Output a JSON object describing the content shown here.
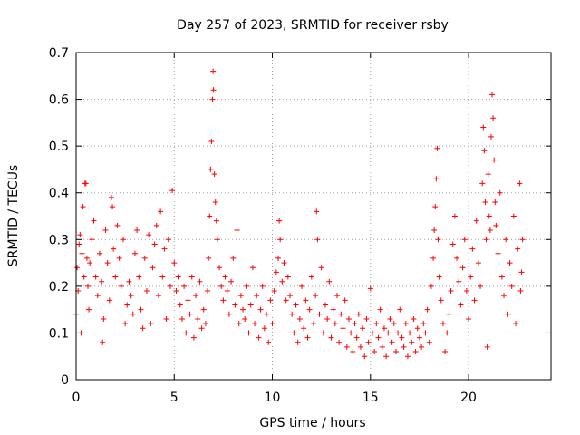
{
  "chart_data": {
    "type": "scatter",
    "title": "Day 257 of 2023, SRMTID for receiver rsby",
    "xlabel": "GPS time / hours",
    "ylabel": "SRMTID / TECUs",
    "xlim": [
      0,
      24.2
    ],
    "ylim": [
      0,
      0.7
    ],
    "x_ticks": [
      0,
      5,
      10,
      15,
      20
    ],
    "y_ticks": [
      0,
      0.1,
      0.2,
      0.3,
      0.4,
      0.5,
      0.6,
      0.7
    ],
    "x_tick_labels": [
      "0",
      "5",
      "10",
      "15",
      "20"
    ],
    "y_tick_labels": [
      "0",
      "0.1",
      "0.2",
      "0.3",
      "0.4",
      "0.5",
      "0.6",
      "0.7"
    ],
    "grid": true,
    "marker": "+",
    "color": "#ff0000",
    "series": [
      {
        "name": "SRMTID",
        "points": [
          [
            0.0,
            0.14
          ],
          [
            0.05,
            0.24
          ],
          [
            0.1,
            0.19
          ],
          [
            0.15,
            0.29
          ],
          [
            0.2,
            0.31
          ],
          [
            0.25,
            0.1
          ],
          [
            0.3,
            0.27
          ],
          [
            0.35,
            0.37
          ],
          [
            0.4,
            0.22
          ],
          [
            0.45,
            0.42
          ],
          [
            0.5,
            0.42
          ],
          [
            0.55,
            0.26
          ],
          [
            0.6,
            0.2
          ],
          [
            0.65,
            0.15
          ],
          [
            0.7,
            0.25
          ],
          [
            0.8,
            0.3
          ],
          [
            0.9,
            0.34
          ],
          [
            1.0,
            0.22
          ],
          [
            1.1,
            0.18
          ],
          [
            1.2,
            0.27
          ],
          [
            1.3,
            0.21
          ],
          [
            1.35,
            0.08
          ],
          [
            1.4,
            0.13
          ],
          [
            1.5,
            0.32
          ],
          [
            1.6,
            0.25
          ],
          [
            1.7,
            0.17
          ],
          [
            1.8,
            0.39
          ],
          [
            1.85,
            0.37
          ],
          [
            1.9,
            0.28
          ],
          [
            2.0,
            0.22
          ],
          [
            2.1,
            0.33
          ],
          [
            2.2,
            0.26
          ],
          [
            2.3,
            0.2
          ],
          [
            2.4,
            0.3
          ],
          [
            2.5,
            0.12
          ],
          [
            2.6,
            0.16
          ],
          [
            2.7,
            0.21
          ],
          [
            2.8,
            0.18
          ],
          [
            2.9,
            0.14
          ],
          [
            3.0,
            0.27
          ],
          [
            3.1,
            0.32
          ],
          [
            3.2,
            0.22
          ],
          [
            3.3,
            0.15
          ],
          [
            3.4,
            0.11
          ],
          [
            3.5,
            0.26
          ],
          [
            3.6,
            0.19
          ],
          [
            3.7,
            0.31
          ],
          [
            3.8,
            0.12
          ],
          [
            3.9,
            0.24
          ],
          [
            4.0,
            0.29
          ],
          [
            4.1,
            0.33
          ],
          [
            4.2,
            0.18
          ],
          [
            4.3,
            0.36
          ],
          [
            4.4,
            0.22
          ],
          [
            4.5,
            0.28
          ],
          [
            4.6,
            0.13
          ],
          [
            4.7,
            0.3
          ],
          [
            4.8,
            0.2
          ],
          [
            4.9,
            0.405
          ],
          [
            5.0,
            0.25
          ],
          [
            5.1,
            0.19
          ],
          [
            5.2,
            0.22
          ],
          [
            5.3,
            0.16
          ],
          [
            5.4,
            0.13
          ],
          [
            5.5,
            0.2
          ],
          [
            5.6,
            0.1
          ],
          [
            5.7,
            0.17
          ],
          [
            5.8,
            0.14
          ],
          [
            5.9,
            0.22
          ],
          [
            6.0,
            0.09
          ],
          [
            6.1,
            0.18
          ],
          [
            6.2,
            0.13
          ],
          [
            6.3,
            0.21
          ],
          [
            6.4,
            0.11
          ],
          [
            6.5,
            0.15
          ],
          [
            6.6,
            0.12
          ],
          [
            6.7,
            0.19
          ],
          [
            6.75,
            0.26
          ],
          [
            6.8,
            0.35
          ],
          [
            6.85,
            0.45
          ],
          [
            6.9,
            0.51
          ],
          [
            6.95,
            0.6
          ],
          [
            7.0,
            0.62
          ],
          [
            6.98,
            0.66
          ],
          [
            7.05,
            0.44
          ],
          [
            7.1,
            0.38
          ],
          [
            7.15,
            0.34
          ],
          [
            7.2,
            0.3
          ],
          [
            7.3,
            0.24
          ],
          [
            7.4,
            0.2
          ],
          [
            7.5,
            0.17
          ],
          [
            7.6,
            0.22
          ],
          [
            7.7,
            0.19
          ],
          [
            7.8,
            0.14
          ],
          [
            7.9,
            0.21
          ],
          [
            8.0,
            0.26
          ],
          [
            8.1,
            0.16
          ],
          [
            8.2,
            0.32
          ],
          [
            8.3,
            0.12
          ],
          [
            8.4,
            0.18
          ],
          [
            8.5,
            0.15
          ],
          [
            8.6,
            0.13
          ],
          [
            8.7,
            0.2
          ],
          [
            8.8,
            0.1
          ],
          [
            8.9,
            0.16
          ],
          [
            9.0,
            0.24
          ],
          [
            9.1,
            0.12
          ],
          [
            9.2,
            0.18
          ],
          [
            9.3,
            0.09
          ],
          [
            9.4,
            0.15
          ],
          [
            9.5,
            0.2
          ],
          [
            9.6,
            0.11
          ],
          [
            9.7,
            0.14
          ],
          [
            9.8,
            0.08
          ],
          [
            9.9,
            0.17
          ],
          [
            10.0,
            0.12
          ],
          [
            10.1,
            0.19
          ],
          [
            10.2,
            0.23
          ],
          [
            10.3,
            0.26
          ],
          [
            10.35,
            0.34
          ],
          [
            10.4,
            0.3
          ],
          [
            10.5,
            0.21
          ],
          [
            10.6,
            0.25
          ],
          [
            10.7,
            0.17
          ],
          [
            10.8,
            0.22
          ],
          [
            10.9,
            0.18
          ],
          [
            11.0,
            0.14
          ],
          [
            11.1,
            0.1
          ],
          [
            11.2,
            0.16
          ],
          [
            11.3,
            0.08
          ],
          [
            11.4,
            0.13
          ],
          [
            11.5,
            0.2
          ],
          [
            11.6,
            0.11
          ],
          [
            11.7,
            0.17
          ],
          [
            11.8,
            0.09
          ],
          [
            11.9,
            0.15
          ],
          [
            12.0,
            0.22
          ],
          [
            12.1,
            0.12
          ],
          [
            12.2,
            0.18
          ],
          [
            12.25,
            0.36
          ],
          [
            12.3,
            0.3
          ],
          [
            12.4,
            0.14
          ],
          [
            12.5,
            0.24
          ],
          [
            12.6,
            0.1
          ],
          [
            12.7,
            0.16
          ],
          [
            12.8,
            0.13
          ],
          [
            12.9,
            0.21
          ],
          [
            13.0,
            0.09
          ],
          [
            13.1,
            0.15
          ],
          [
            13.2,
            0.12
          ],
          [
            13.3,
            0.18
          ],
          [
            13.4,
            0.08
          ],
          [
            13.5,
            0.14
          ],
          [
            13.6,
            0.11
          ],
          [
            13.7,
            0.17
          ],
          [
            13.8,
            0.07
          ],
          [
            13.9,
            0.13
          ],
          [
            14.0,
            0.1
          ],
          [
            14.1,
            0.06
          ],
          [
            14.2,
            0.12
          ],
          [
            14.3,
            0.09
          ],
          [
            14.4,
            0.14
          ],
          [
            14.5,
            0.07
          ],
          [
            14.6,
            0.11
          ],
          [
            14.7,
            0.05
          ],
          [
            14.8,
            0.13
          ],
          [
            14.9,
            0.08
          ],
          [
            15.0,
            0.195
          ],
          [
            15.1,
            0.1
          ],
          [
            15.2,
            0.06
          ],
          [
            15.3,
            0.12
          ],
          [
            15.4,
            0.09
          ],
          [
            15.5,
            0.15
          ],
          [
            15.6,
            0.07
          ],
          [
            15.7,
            0.11
          ],
          [
            15.8,
            0.05
          ],
          [
            15.9,
            0.1
          ],
          [
            16.0,
            0.13
          ],
          [
            16.1,
            0.08
          ],
          [
            16.2,
            0.12
          ],
          [
            16.3,
            0.06
          ],
          [
            16.4,
            0.1
          ],
          [
            16.5,
            0.15
          ],
          [
            16.6,
            0.09
          ],
          [
            16.7,
            0.07
          ],
          [
            16.8,
            0.12
          ],
          [
            16.9,
            0.05
          ],
          [
            17.0,
            0.1
          ],
          [
            17.1,
            0.08
          ],
          [
            17.2,
            0.13
          ],
          [
            17.3,
            0.06
          ],
          [
            17.4,
            0.11
          ],
          [
            17.5,
            0.09
          ],
          [
            17.6,
            0.07
          ],
          [
            17.7,
            0.12
          ],
          [
            17.8,
            0.1
          ],
          [
            17.9,
            0.15
          ],
          [
            18.0,
            0.08
          ],
          [
            18.1,
            0.2
          ],
          [
            18.2,
            0.26
          ],
          [
            18.25,
            0.32
          ],
          [
            18.3,
            0.37
          ],
          [
            18.35,
            0.43
          ],
          [
            18.4,
            0.495
          ],
          [
            18.45,
            0.3
          ],
          [
            18.5,
            0.22
          ],
          [
            18.6,
            0.17
          ],
          [
            18.7,
            0.12
          ],
          [
            18.8,
            0.06
          ],
          [
            18.9,
            0.1
          ],
          [
            19.0,
            0.14
          ],
          [
            19.1,
            0.19
          ],
          [
            19.2,
            0.29
          ],
          [
            19.3,
            0.35
          ],
          [
            19.4,
            0.26
          ],
          [
            19.5,
            0.21
          ],
          [
            19.6,
            0.16
          ],
          [
            19.7,
            0.24
          ],
          [
            19.8,
            0.3
          ],
          [
            19.9,
            0.19
          ],
          [
            20.0,
            0.13
          ],
          [
            20.1,
            0.22
          ],
          [
            20.2,
            0.28
          ],
          [
            20.3,
            0.17
          ],
          [
            20.4,
            0.34
          ],
          [
            20.5,
            0.25
          ],
          [
            20.6,
            0.2
          ],
          [
            20.7,
            0.42
          ],
          [
            20.75,
            0.54
          ],
          [
            20.8,
            0.49
          ],
          [
            20.85,
            0.38
          ],
          [
            20.9,
            0.3
          ],
          [
            20.95,
            0.07
          ],
          [
            21.0,
            0.44
          ],
          [
            21.05,
            0.35
          ],
          [
            21.1,
            0.32
          ],
          [
            21.15,
            0.52
          ],
          [
            21.2,
            0.61
          ],
          [
            21.25,
            0.56
          ],
          [
            21.3,
            0.47
          ],
          [
            21.35,
            0.38
          ],
          [
            21.4,
            0.33
          ],
          [
            21.5,
            0.27
          ],
          [
            21.6,
            0.4
          ],
          [
            21.7,
            0.22
          ],
          [
            21.8,
            0.18
          ],
          [
            21.9,
            0.3
          ],
          [
            22.0,
            0.14
          ],
          [
            22.1,
            0.25
          ],
          [
            22.2,
            0.2
          ],
          [
            22.3,
            0.35
          ],
          [
            22.4,
            0.12
          ],
          [
            22.5,
            0.28
          ],
          [
            22.6,
            0.42
          ],
          [
            22.65,
            0.19
          ],
          [
            22.7,
            0.23
          ],
          [
            22.75,
            0.3
          ]
        ]
      }
    ]
  }
}
